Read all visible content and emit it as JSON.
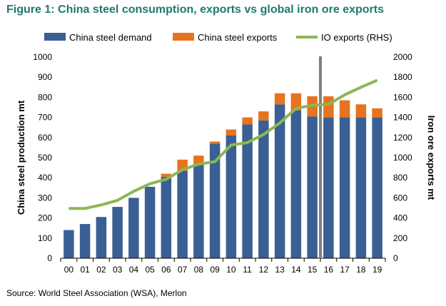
{
  "title": "Figure 1: China steel consumption, exports vs global iron ore exports",
  "source": "Source: World Steel Association (WSA), Merlon",
  "chart_data": {
    "type": "bar",
    "stacked": true,
    "categories": [
      "00",
      "01",
      "02",
      "03",
      "04",
      "05",
      "06",
      "07",
      "08",
      "09",
      "10",
      "11",
      "12",
      "13",
      "14",
      "15",
      "16",
      "17",
      "18",
      "19"
    ],
    "series": [
      {
        "name": "China steel demand",
        "type": "bar",
        "axis": "left",
        "color": "#3a5f94",
        "values": [
          140,
          170,
          205,
          255,
          300,
          355,
          405,
          435,
          465,
          570,
          610,
          665,
          685,
          765,
          735,
          705,
          700,
          700,
          700,
          700
        ]
      },
      {
        "name": "China steel exports",
        "type": "bar",
        "axis": "left",
        "color": "#e8731e",
        "values": [
          0,
          0,
          0,
          0,
          0,
          0,
          15,
          55,
          45,
          10,
          30,
          35,
          45,
          55,
          85,
          100,
          105,
          85,
          65,
          45
        ]
      },
      {
        "name": "IO exports (RHS)",
        "type": "line",
        "axis": "right",
        "color": "#8db654",
        "values": [
          495,
          495,
          530,
          575,
          665,
          740,
          785,
          880,
          935,
          960,
          1125,
          1150,
          1230,
          1345,
          1490,
          1520,
          1530,
          1625,
          1700,
          1770
        ]
      }
    ],
    "ylabel": "China steel production mt",
    "y2label": "Iron ore exports mt",
    "ylim": [
      0,
      1000
    ],
    "y2lim": [
      0,
      2000
    ],
    "yticks": [
      "0",
      "100",
      "200",
      "300",
      "400",
      "500",
      "600",
      "700",
      "800",
      "900",
      "1000"
    ],
    "y2ticks": [
      "0",
      "200",
      "400",
      "600",
      "800",
      "1000",
      "1200",
      "1400",
      "1600",
      "1800",
      "2000"
    ],
    "forecast_divider_after": "15",
    "divider_color": "#808080",
    "grid": false,
    "legend_position": "top"
  }
}
